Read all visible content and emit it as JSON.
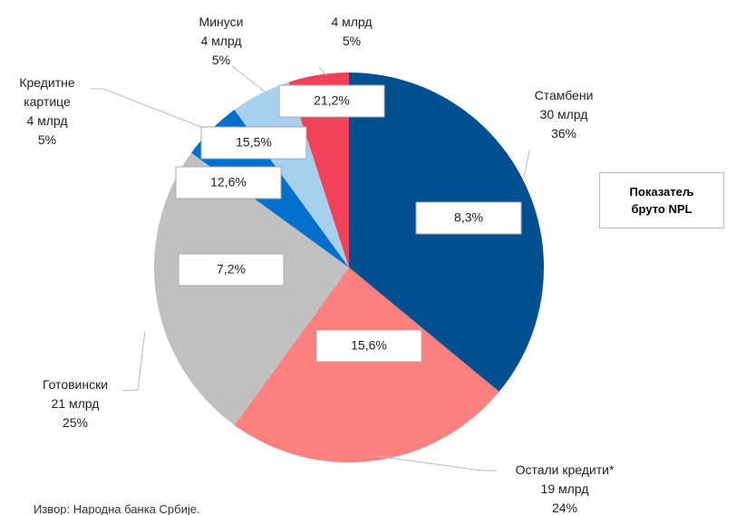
{
  "chart_data": {
    "type": "pie",
    "categories": [
      "Стамбени",
      "Остали кредити*",
      "Готовински",
      "Кредитне картице",
      "Минуси",
      null
    ],
    "values": [
      36,
      24,
      25,
      5,
      5,
      5
    ],
    "value_labels": [
      "36%",
      "24%",
      "25%",
      "5%",
      "5%",
      "5%"
    ],
    "amounts": [
      "30 млрд",
      "19 млрд",
      "21 млрд",
      "4 млрд",
      "4 млрд",
      "4 млрд"
    ],
    "npl_labels": [
      "8,3%",
      "15,6%",
      "7,2%",
      "12,6%",
      "15,5%",
      "21,2%"
    ],
    "colors": [
      "#00508f",
      "#fc8080",
      "#c0c0c0",
      "#0070cc",
      "#a6d0ee",
      "#f0405a"
    ],
    "annotation": "Показатељ бруто NPL",
    "source": "Извор: Народна банка Србије."
  }
}
